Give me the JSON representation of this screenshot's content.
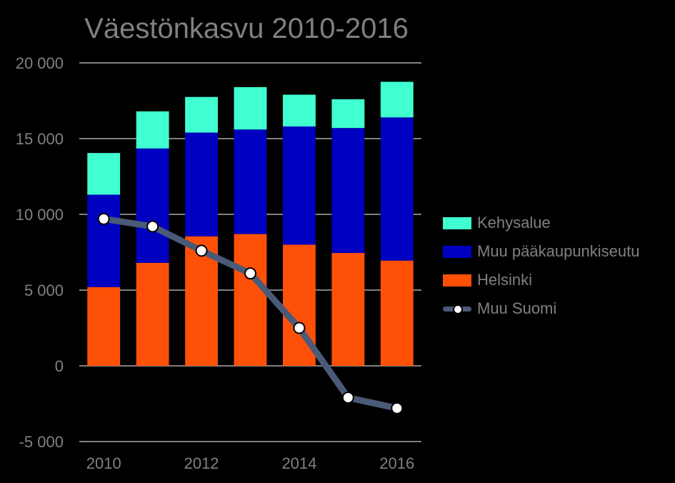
{
  "chart_data": {
    "type": "bar",
    "stacked": true,
    "title": "Väestönkasvu 2010-2016",
    "categories": [
      "2010",
      "2011",
      "2012",
      "2013",
      "2014",
      "2015",
      "2016"
    ],
    "x_tick_labels": [
      "2010",
      "2012",
      "2014",
      "2016"
    ],
    "ylim": [
      -5000,
      20000
    ],
    "y_ticks": [
      -5000,
      0,
      5000,
      10000,
      15000,
      20000
    ],
    "y_tick_labels": [
      "-5 000",
      "0",
      "5 000",
      "10 000",
      "15 000",
      "20 000"
    ],
    "grid": true,
    "legend_position": "right",
    "series": [
      {
        "name": "Helsinki",
        "kind": "bar",
        "color": "#FF5008",
        "values": [
          5200,
          6800,
          8550,
          8700,
          8000,
          7450,
          6950
        ]
      },
      {
        "name": "Muu pääkaupunkiseutu",
        "kind": "bar",
        "color": "#0000C0",
        "values": [
          6100,
          7550,
          6850,
          6900,
          7800,
          8250,
          9450
        ]
      },
      {
        "name": "Kehysalue",
        "kind": "bar",
        "color": "#40FFD0",
        "values": [
          2750,
          2450,
          2350,
          2800,
          2100,
          1900,
          2350
        ]
      },
      {
        "name": "Muu Suomi",
        "kind": "line",
        "color": "#4A5A78",
        "values": [
          9700,
          9200,
          7600,
          6100,
          2500,
          -2100,
          -2800
        ]
      }
    ]
  }
}
